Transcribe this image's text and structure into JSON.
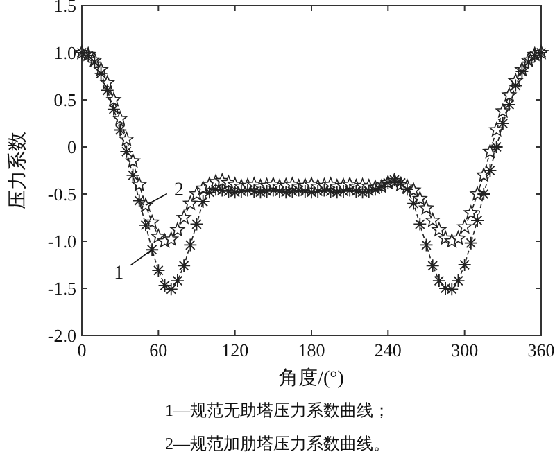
{
  "chart_data": {
    "type": "line",
    "xlabel": "角度/(°)",
    "ylabel": "压力系数",
    "x": [
      0,
      5,
      10,
      15,
      20,
      25,
      30,
      35,
      40,
      45,
      50,
      55,
      60,
      65,
      70,
      75,
      80,
      85,
      90,
      95,
      100,
      105,
      110,
      115,
      120,
      125,
      130,
      135,
      140,
      145,
      150,
      155,
      160,
      165,
      170,
      175,
      180,
      185,
      190,
      195,
      200,
      205,
      210,
      215,
      220,
      225,
      230,
      235,
      240,
      245,
      250,
      255,
      260,
      265,
      270,
      275,
      280,
      285,
      290,
      295,
      300,
      305,
      310,
      315,
      320,
      325,
      330,
      335,
      340,
      345,
      350,
      355,
      360
    ],
    "series": [
      {
        "color": "#222222",
        "marker": "cross",
        "values": [
          1.0,
          0.97,
          0.9,
          0.78,
          0.6,
          0.4,
          0.18,
          -0.05,
          -0.3,
          -0.57,
          -0.83,
          -1.09,
          -1.31,
          -1.47,
          -1.51,
          -1.42,
          -1.26,
          -1.04,
          -0.82,
          -0.58,
          -0.48,
          -0.45,
          -0.46,
          -0.47,
          -0.48,
          -0.47,
          -0.46,
          -0.47,
          -0.48,
          -0.47,
          -0.46,
          -0.47,
          -0.48,
          -0.47,
          -0.46,
          -0.47,
          -0.48,
          -0.47,
          -0.46,
          -0.47,
          -0.48,
          -0.47,
          -0.46,
          -0.47,
          -0.48,
          -0.47,
          -0.45,
          -0.42,
          -0.38,
          -0.35,
          -0.38,
          -0.45,
          -0.6,
          -0.82,
          -1.04,
          -1.26,
          -1.42,
          -1.5,
          -1.51,
          -1.42,
          -1.25,
          -1.02,
          -0.78,
          -0.5,
          -0.25,
          0.0,
          0.25,
          0.45,
          0.65,
          0.8,
          0.9,
          0.97,
          1.0
        ]
      },
      {
        "color": "#222222",
        "marker": "star",
        "values": [
          1.0,
          0.98,
          0.92,
          0.82,
          0.68,
          0.5,
          0.3,
          0.08,
          -0.15,
          -0.4,
          -0.62,
          -0.8,
          -0.95,
          -1.0,
          -0.98,
          -0.88,
          -0.75,
          -0.6,
          -0.5,
          -0.44,
          -0.4,
          -0.37,
          -0.36,
          -0.38,
          -0.4,
          -0.42,
          -0.41,
          -0.4,
          -0.42,
          -0.41,
          -0.4,
          -0.42,
          -0.41,
          -0.4,
          -0.42,
          -0.41,
          -0.4,
          -0.42,
          -0.41,
          -0.4,
          -0.42,
          -0.41,
          -0.4,
          -0.42,
          -0.41,
          -0.42,
          -0.43,
          -0.42,
          -0.38,
          -0.36,
          -0.4,
          -0.42,
          -0.46,
          -0.55,
          -0.65,
          -0.78,
          -0.88,
          -0.97,
          -1.0,
          -0.97,
          -0.85,
          -0.7,
          -0.5,
          -0.3,
          -0.05,
          0.18,
          0.38,
          0.55,
          0.7,
          0.82,
          0.92,
          0.98,
          1.0
        ]
      }
    ],
    "line_style": "dashed",
    "xlim": [
      0,
      360
    ],
    "xticks": [
      0,
      60,
      120,
      180,
      240,
      300,
      360
    ],
    "ylim": [
      -2.0,
      1.5
    ],
    "yticks": [
      {
        "value": -2.0,
        "label": "-2.0"
      },
      {
        "value": -1.5,
        "label": "-1.5"
      },
      {
        "value": -1.0,
        "label": "-1.0"
      },
      {
        "value": -0.5,
        "label": "-0.5"
      },
      0,
      {
        "value": 0.5,
        "label": "0.5"
      },
      {
        "value": 1.0,
        "label": "1.0"
      },
      {
        "value": 1.5,
        "label": "1.5"
      }
    ],
    "grid": false,
    "annotations": [
      {
        "text": "1",
        "x": 55,
        "y": -1.09
      },
      {
        "text": "2",
        "x": 50,
        "y": -0.62
      },
      "1—规范无助塔压力系数曲线；",
      "2—规范加肋塔压力系数曲线。"
    ]
  }
}
